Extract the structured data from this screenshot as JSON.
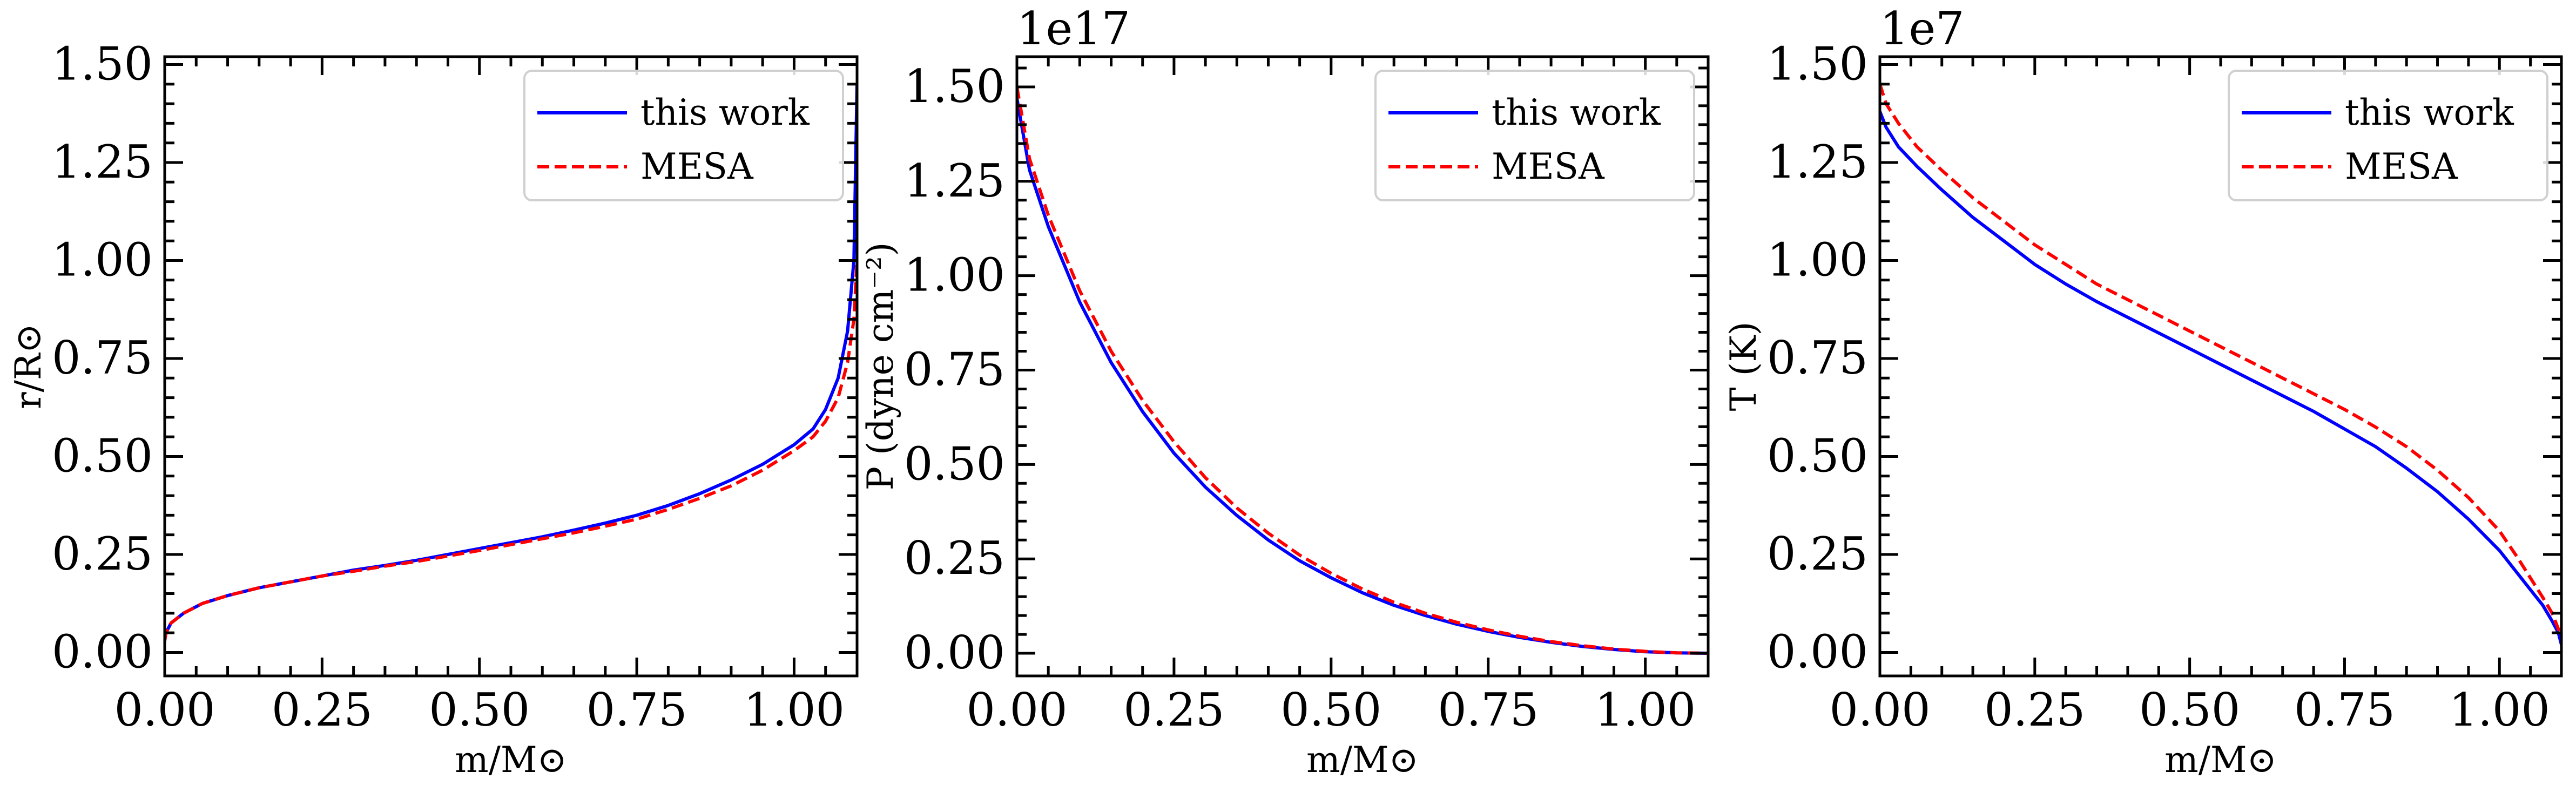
{
  "chart_data": [
    {
      "type": "line",
      "xlabel": "m/M⊙",
      "ylabel": "r/R⊙",
      "offset_text": "",
      "xlim": [
        0,
        1.1
      ],
      "ylim": [
        -0.06,
        1.52
      ],
      "xticks": [
        "0.00",
        "0.25",
        "0.50",
        "0.75",
        "1.00"
      ],
      "yticks": [
        "0.00",
        "0.25",
        "0.50",
        "0.75",
        "1.00",
        "1.25",
        "1.50"
      ],
      "grid": false,
      "legend_position": "upper right",
      "series": [
        {
          "name": "this work",
          "color": "#0000ff",
          "style": "solid",
          "x": [
            0.0,
            0.002,
            0.01,
            0.03,
            0.06,
            0.1,
            0.15,
            0.2,
            0.25,
            0.3,
            0.35,
            0.4,
            0.45,
            0.5,
            0.55,
            0.6,
            0.65,
            0.7,
            0.75,
            0.8,
            0.85,
            0.9,
            0.95,
            1.0,
            1.03,
            1.05,
            1.07,
            1.085,
            1.095,
            1.1
          ],
          "y": [
            0.03,
            0.05,
            0.075,
            0.1,
            0.125,
            0.145,
            0.165,
            0.18,
            0.195,
            0.21,
            0.222,
            0.235,
            0.25,
            0.265,
            0.28,
            0.295,
            0.312,
            0.33,
            0.35,
            0.375,
            0.405,
            0.44,
            0.48,
            0.53,
            0.57,
            0.62,
            0.7,
            0.82,
            1.0,
            1.45
          ]
        },
        {
          "name": "MESA",
          "color": "#ff0000",
          "style": "dashed",
          "x": [
            0.0,
            0.002,
            0.01,
            0.03,
            0.06,
            0.1,
            0.15,
            0.2,
            0.25,
            0.3,
            0.35,
            0.4,
            0.45,
            0.5,
            0.55,
            0.6,
            0.65,
            0.7,
            0.75,
            0.8,
            0.85,
            0.9,
            0.95,
            1.0,
            1.03,
            1.05,
            1.07,
            1.085,
            1.095,
            1.1
          ],
          "y": [
            0.03,
            0.05,
            0.075,
            0.1,
            0.125,
            0.145,
            0.165,
            0.18,
            0.195,
            0.207,
            0.22,
            0.232,
            0.246,
            0.26,
            0.275,
            0.29,
            0.305,
            0.322,
            0.34,
            0.365,
            0.393,
            0.425,
            0.465,
            0.515,
            0.55,
            0.59,
            0.65,
            0.74,
            0.85,
            1.0
          ]
        }
      ]
    },
    {
      "type": "line",
      "xlabel": "m/M⊙",
      "ylabel": "P (dyne cm⁻²)",
      "offset_text": "1e17",
      "xlim": [
        0,
        1.1
      ],
      "ylim": [
        -0.06,
        1.58
      ],
      "xticks": [
        "0.00",
        "0.25",
        "0.50",
        "0.75",
        "1.00"
      ],
      "yticks": [
        "0.00",
        "0.25",
        "0.50",
        "0.75",
        "1.00",
        "1.25",
        "1.50"
      ],
      "grid": false,
      "legend_position": "upper right",
      "series": [
        {
          "name": "this work",
          "color": "#0000ff",
          "style": "solid",
          "x": [
            0.0,
            0.02,
            0.05,
            0.1,
            0.15,
            0.2,
            0.25,
            0.3,
            0.35,
            0.4,
            0.45,
            0.5,
            0.55,
            0.6,
            0.65,
            0.7,
            0.75,
            0.8,
            0.85,
            0.9,
            0.95,
            1.0,
            1.05,
            1.1
          ],
          "y": [
            1.47,
            1.28,
            1.13,
            0.93,
            0.77,
            0.64,
            0.53,
            0.44,
            0.365,
            0.3,
            0.245,
            0.2,
            0.16,
            0.127,
            0.1,
            0.077,
            0.058,
            0.042,
            0.029,
            0.018,
            0.01,
            0.004,
            0.001,
            0.0
          ]
        },
        {
          "name": "MESA",
          "color": "#ff0000",
          "style": "dashed",
          "x": [
            0.0,
            0.02,
            0.05,
            0.1,
            0.15,
            0.2,
            0.25,
            0.3,
            0.35,
            0.4,
            0.45,
            0.5,
            0.55,
            0.6,
            0.65,
            0.7,
            0.75,
            0.8,
            0.85,
            0.9,
            0.95,
            1.0,
            1.05,
            1.1
          ],
          "y": [
            1.5,
            1.31,
            1.16,
            0.96,
            0.8,
            0.67,
            0.56,
            0.465,
            0.385,
            0.318,
            0.26,
            0.212,
            0.17,
            0.135,
            0.106,
            0.082,
            0.062,
            0.045,
            0.031,
            0.02,
            0.011,
            0.005,
            0.001,
            0.0
          ]
        }
      ]
    },
    {
      "type": "line",
      "xlabel": "m/M⊙",
      "ylabel": "T (K)",
      "offset_text": "1e7",
      "xlim": [
        0,
        1.1
      ],
      "ylim": [
        -0.06,
        1.52
      ],
      "xticks": [
        "0.00",
        "0.25",
        "0.50",
        "0.75",
        "1.00"
      ],
      "yticks": [
        "0.00",
        "0.25",
        "0.50",
        "0.75",
        "1.00",
        "1.25",
        "1.50"
      ],
      "grid": false,
      "legend_position": "upper right",
      "series": [
        {
          "name": "this work",
          "color": "#0000ff",
          "style": "solid",
          "x": [
            0.0,
            0.01,
            0.03,
            0.06,
            0.1,
            0.15,
            0.2,
            0.25,
            0.3,
            0.35,
            0.4,
            0.45,
            0.5,
            0.55,
            0.6,
            0.65,
            0.7,
            0.75,
            0.8,
            0.85,
            0.9,
            0.95,
            1.0,
            1.03,
            1.05,
            1.07,
            1.085,
            1.095,
            1.1
          ],
          "y": [
            1.38,
            1.34,
            1.29,
            1.24,
            1.18,
            1.11,
            1.05,
            0.99,
            0.94,
            0.895,
            0.855,
            0.815,
            0.775,
            0.735,
            0.695,
            0.655,
            0.615,
            0.57,
            0.525,
            0.47,
            0.41,
            0.34,
            0.26,
            0.2,
            0.16,
            0.12,
            0.08,
            0.05,
            0.02
          ]
        },
        {
          "name": "MESA",
          "color": "#ff0000",
          "style": "dashed",
          "x": [
            0.0,
            0.01,
            0.03,
            0.06,
            0.1,
            0.15,
            0.2,
            0.25,
            0.3,
            0.35,
            0.4,
            0.45,
            0.5,
            0.55,
            0.6,
            0.65,
            0.7,
            0.75,
            0.8,
            0.85,
            0.9,
            0.95,
            1.0,
            1.03,
            1.05,
            1.07,
            1.085,
            1.095,
            1.1
          ],
          "y": [
            1.45,
            1.4,
            1.35,
            1.29,
            1.23,
            1.16,
            1.1,
            1.04,
            0.99,
            0.94,
            0.9,
            0.86,
            0.82,
            0.78,
            0.74,
            0.7,
            0.66,
            0.62,
            0.575,
            0.525,
            0.465,
            0.395,
            0.31,
            0.24,
            0.19,
            0.14,
            0.1,
            0.06,
            0.04
          ]
        }
      ]
    }
  ]
}
